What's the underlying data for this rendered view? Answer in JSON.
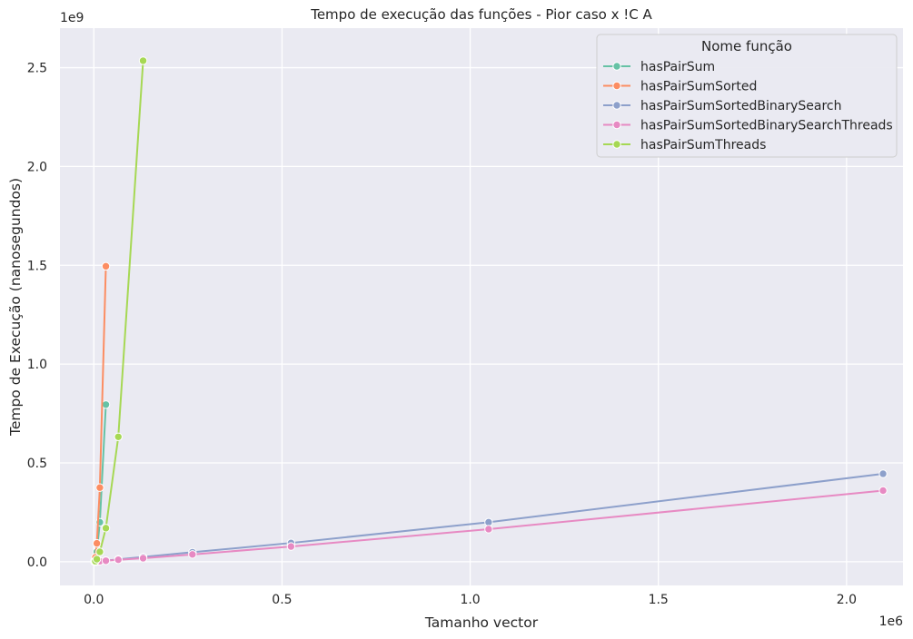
{
  "chart_data": {
    "type": "line",
    "title": "Tempo de execução das funções - Pior caso x !C A",
    "xlabel": "Tamanho vector",
    "ylabel": "Tempo de Execução (nanosegundos)",
    "x_offset_label": "1e6",
    "y_offset_label": "1e9",
    "xlim": [
      -0.09,
      2.15
    ],
    "ylim": [
      -0.12,
      2.7
    ],
    "x_ticks": [
      0.0,
      0.5,
      1.0,
      1.5,
      2.0
    ],
    "x_tick_labels": [
      "0.0",
      "0.5",
      "1.0",
      "1.5",
      "2.0"
    ],
    "y_ticks": [
      0.0,
      0.5,
      1.0,
      1.5,
      2.0,
      2.5
    ],
    "y_tick_labels": [
      "0.0",
      "0.5",
      "1.0",
      "1.5",
      "2.0",
      "2.5"
    ],
    "grid": true,
    "background": "#eaeaf2",
    "legend": {
      "title": "Nome função",
      "position": "top-right"
    },
    "series": [
      {
        "name": "hasPairSum",
        "color": "#66c2a5",
        "points": [
          [
            0.002,
            0.003
          ],
          [
            0.004,
            0.012
          ],
          [
            0.008,
            0.05
          ],
          [
            0.016,
            0.2
          ],
          [
            0.032,
            0.795
          ]
        ]
      },
      {
        "name": "hasPairSumSorted",
        "color": "#fc8d62",
        "points": [
          [
            0.002,
            0.005
          ],
          [
            0.004,
            0.022
          ],
          [
            0.008,
            0.093
          ],
          [
            0.016,
            0.375
          ],
          [
            0.032,
            1.495
          ]
        ]
      },
      {
        "name": "hasPairSumSortedBinarySearch",
        "color": "#8da0cb",
        "points": [
          [
            0.002,
            0.0005
          ],
          [
            0.004,
            0.001
          ],
          [
            0.008,
            0.0015
          ],
          [
            0.016,
            0.003
          ],
          [
            0.032,
            0.006
          ],
          [
            0.065,
            0.012
          ],
          [
            0.131,
            0.024
          ],
          [
            0.262,
            0.048
          ],
          [
            0.524,
            0.095
          ],
          [
            1.049,
            0.2
          ],
          [
            2.097,
            0.445
          ]
        ]
      },
      {
        "name": "hasPairSumSortedBinarySearchThreads",
        "color": "#e78ac3",
        "points": [
          [
            0.002,
            0.0004
          ],
          [
            0.004,
            0.0008
          ],
          [
            0.008,
            0.0015
          ],
          [
            0.016,
            0.003
          ],
          [
            0.032,
            0.005
          ],
          [
            0.065,
            0.01
          ],
          [
            0.131,
            0.018
          ],
          [
            0.262,
            0.037
          ],
          [
            0.524,
            0.077
          ],
          [
            1.049,
            0.165
          ],
          [
            2.097,
            0.36
          ]
        ]
      },
      {
        "name": "hasPairSumThreads",
        "color": "#a6d854",
        "points": [
          [
            0.002,
            0.001
          ],
          [
            0.004,
            0.003
          ],
          [
            0.008,
            0.013
          ],
          [
            0.016,
            0.05
          ],
          [
            0.032,
            0.17
          ],
          [
            0.065,
            0.632
          ],
          [
            0.131,
            2.535
          ]
        ]
      }
    ]
  }
}
